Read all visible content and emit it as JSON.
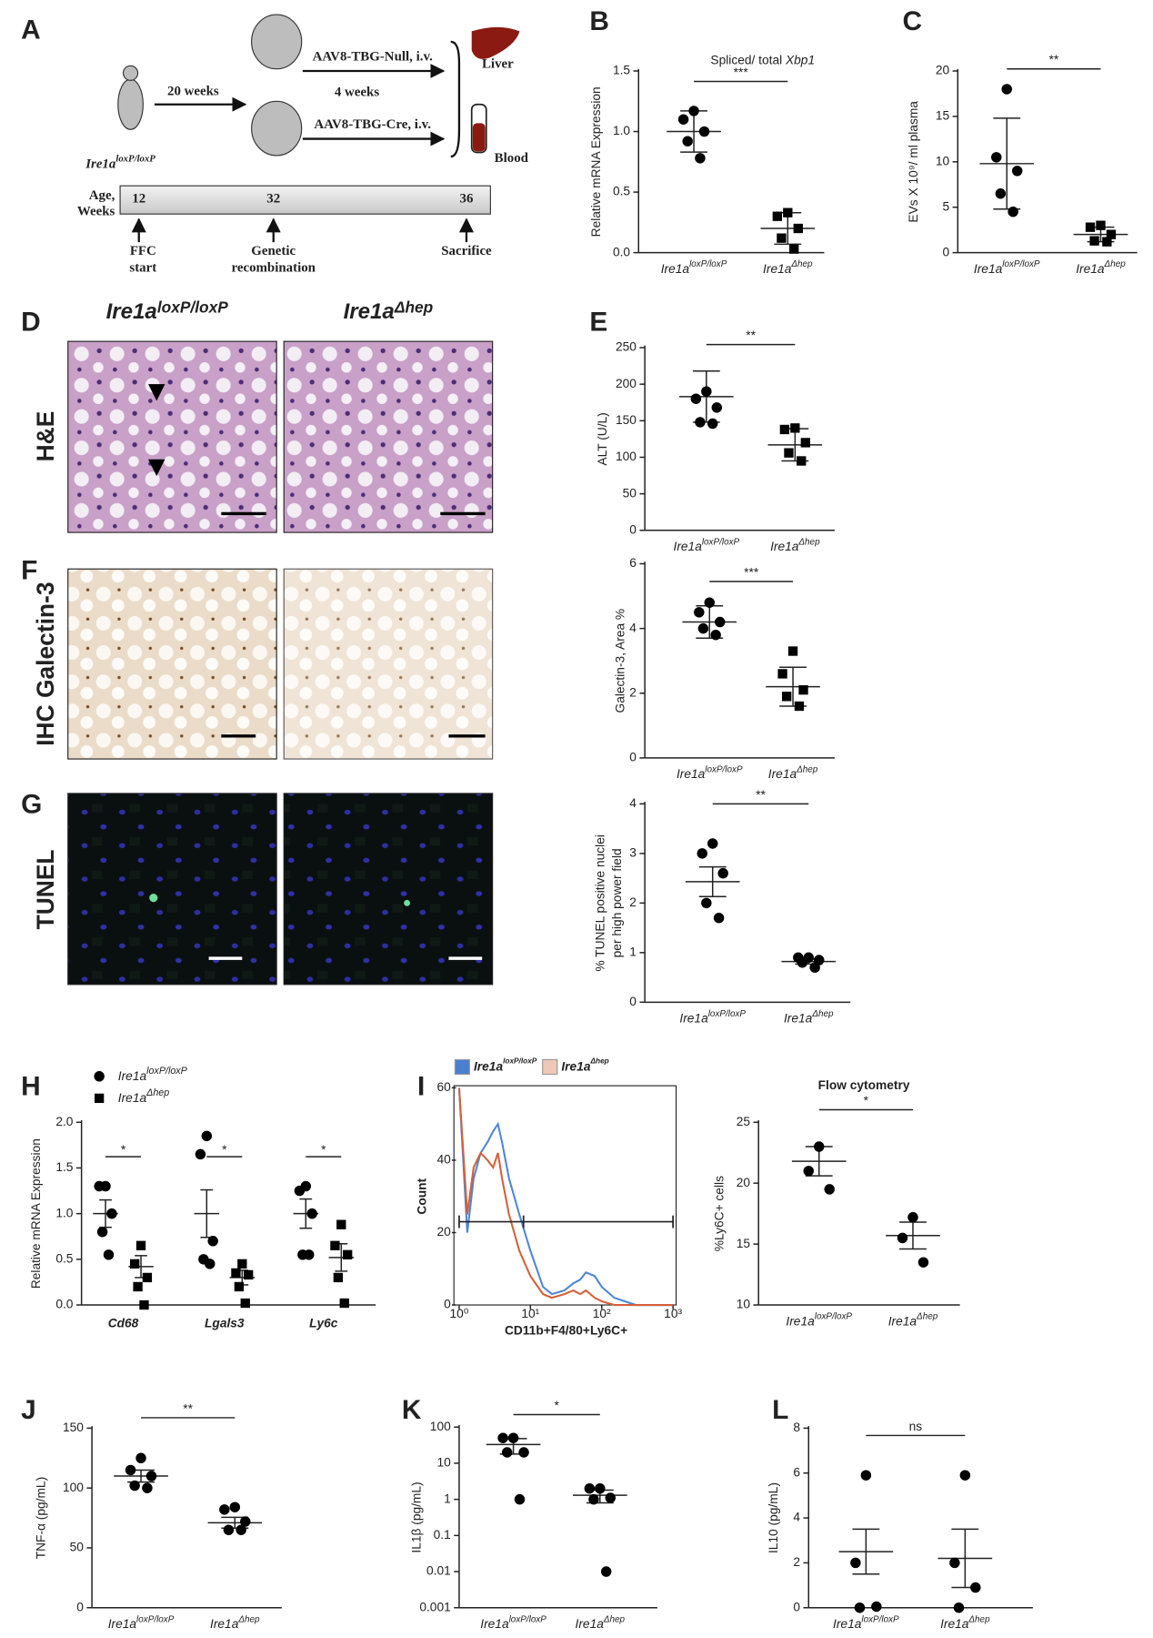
{
  "panel_labels": [
    "A",
    "B",
    "C",
    "D",
    "E",
    "F",
    "G",
    "H",
    "I",
    "J",
    "K",
    "L"
  ],
  "schematic": {
    "interval_1": "20 weeks",
    "treatment_null": "AAV8-TBG-Null, i.v.",
    "interval_2": "4 weeks",
    "treatment_cre": "AAV8-TBG-Cre, i.v.",
    "organ_1": "Liver",
    "organ_2": "Blood",
    "genotype": "Ire1a",
    "genotype_superscript": "loxP/loxP",
    "timeline_label": [
      "Age,",
      "Weeks"
    ],
    "timeline_ticks": [
      12,
      32,
      36
    ],
    "events": [
      [
        "FFC",
        "start"
      ],
      [
        "Genetic",
        "recombination"
      ],
      [
        "Sacrifice"
      ]
    ]
  },
  "histology": {
    "columns": [
      {
        "label": "Ire1a",
        "superscript": "loxP/loxP"
      },
      {
        "label": "Ire1a",
        "superscript": "Δhep"
      }
    ],
    "rows": [
      "H&E",
      "IHC Galectin-3",
      "TUNEL"
    ]
  },
  "chart_data": [
    {
      "type": "dot",
      "title": "Spliced/ total",
      "title_italic": "Xbp1",
      "ylabel": "Relative mRNA Expression",
      "ylim": [
        0,
        1.5
      ],
      "yticks": [
        {
          "value": 0,
          "label": "0.0"
        },
        0.5,
        {
          "value": 1,
          "label": "1.0"
        },
        1.5
      ],
      "significance": "***",
      "groups": [
        {
          "label": "Ire1a",
          "superscript": "loxP/loxP",
          "marker": "circle",
          "points": [
            1.17,
            1.1,
            1.0,
            0.92,
            0.78
          ],
          "mean": 1.0,
          "error": 0.17
        },
        {
          "label": "Ire1a",
          "superscript": "Δhep",
          "marker": "square",
          "points": [
            0.33,
            0.3,
            0.2,
            0.12,
            0.03
          ],
          "mean": 0.2,
          "error": 0.13
        }
      ]
    },
    {
      "type": "dot",
      "ylabel": "EVs X 10⁹/ ml plasma",
      "ylim": [
        0,
        20
      ],
      "yticks": [
        0,
        5,
        10,
        15,
        20
      ],
      "significance": "**",
      "groups": [
        {
          "label": "Ire1a",
          "superscript": "loxP/loxP",
          "marker": "circle",
          "points": [
            18,
            10.5,
            9,
            6.5,
            4.5
          ],
          "mean": 9.8,
          "error": 5
        },
        {
          "label": "Ire1a",
          "superscript": "Δhep",
          "marker": "square",
          "points": [
            3,
            2.8,
            2,
            1.3,
            1.2
          ],
          "mean": 2,
          "error": 0.8
        }
      ]
    },
    {
      "type": "dot",
      "ylabel": "ALT (U/L)",
      "ylim": [
        0,
        250
      ],
      "yticks": [
        0,
        50,
        100,
        150,
        200,
        250
      ],
      "significance": "**",
      "groups": [
        {
          "label": "Ire1a",
          "superscript": "loxP/loxP",
          "marker": "circle",
          "points": [
            190,
            180,
            168,
            148,
            146
          ],
          "mean": 183,
          "error": 35
        },
        {
          "label": "Ire1a",
          "superscript": "Δhep",
          "marker": "square",
          "points": [
            140,
            138,
            120,
            106,
            95
          ],
          "mean": 117,
          "error": 22
        }
      ]
    },
    {
      "type": "dot",
      "ylabel": "Galectin-3, Area %",
      "ylim": [
        0,
        6
      ],
      "yticks": [
        0,
        2,
        4,
        6
      ],
      "significance": "***",
      "groups": [
        {
          "label": "Ire1a",
          "superscript": "loxP/loxP",
          "marker": "circle",
          "points": [
            4.8,
            4.5,
            4.2,
            4.0,
            3.8
          ],
          "mean": 4.2,
          "error": 0.5
        },
        {
          "label": "Ire1a",
          "superscript": "Δhep",
          "marker": "square",
          "points": [
            3.3,
            2.6,
            2.1,
            1.9,
            1.6
          ],
          "mean": 2.2,
          "error": 0.6
        }
      ]
    },
    {
      "type": "dot",
      "ylabel": [
        "% TUNEL positive nuclei",
        "per high power field"
      ],
      "ylim": [
        0,
        4
      ],
      "yticks": [
        0,
        1,
        2,
        3,
        4
      ],
      "significance": "**",
      "groups": [
        {
          "label": "Ire1a",
          "superscript": "loxP/loxP",
          "marker": "circle",
          "points": [
            3.2,
            3.0,
            2.6,
            2.0,
            1.7
          ],
          "mean": 2.43,
          "error": 0.3
        },
        {
          "label": "Ire1a",
          "superscript": "Δhep",
          "marker": "circle",
          "points": [
            0.9,
            0.9,
            0.85,
            0.8,
            0.7
          ],
          "mean": 0.82,
          "error": 0.05
        }
      ]
    },
    {
      "type": "grouped_dot",
      "ylabel": "Relative mRNA Expression",
      "ylim": [
        0,
        2
      ],
      "yticks": [
        {
          "value": 0,
          "label": "0.0"
        },
        0.5,
        {
          "value": 1,
          "label": "1.0"
        },
        1.5,
        {
          "value": 2,
          "label": "2.0"
        }
      ],
      "categories": [
        "Cd68",
        "Lgals3",
        "Ly6c"
      ],
      "significance": [
        "*",
        "*",
        "*"
      ],
      "series": [
        {
          "name": "Ire1a",
          "name_superscript": "loxP/loxP",
          "marker": "circle",
          "points": [
            [
              1.3,
              1.3,
              1.0,
              0.8,
              0.55
            ],
            [
              1.85,
              1.65,
              0.7,
              0.5,
              0.45
            ],
            [
              1.3,
              1.25,
              1.0,
              0.55,
              0.55
            ]
          ],
          "means": [
            1.0,
            1.0,
            1.0
          ],
          "errors": [
            0.15,
            0.26,
            0.16
          ]
        },
        {
          "name": "Ire1a",
          "name_superscript": "Δhep",
          "marker": "square",
          "points": [
            [
              0.65,
              0.45,
              0.3,
              0.2,
              0.0
            ],
            [
              0.45,
              0.35,
              0.33,
              0.2,
              0.02
            ],
            [
              0.88,
              0.65,
              0.55,
              0.3,
              0.02
            ]
          ],
          "means": [
            0.42,
            0.3,
            0.52
          ],
          "errors": [
            0.12,
            0.08,
            0.15
          ]
        }
      ]
    },
    {
      "type": "line",
      "ylabel": "Count",
      "xlabel": "CD11b+F4/80+Ly6C+",
      "xlog": true,
      "xlim": [
        1,
        1000
      ],
      "xticks": [
        {
          "value": 1,
          "label": "10⁰"
        },
        {
          "value": 10,
          "label": "10¹"
        },
        {
          "value": 100,
          "label": "10²"
        },
        {
          "value": 1000,
          "label": "10³"
        }
      ],
      "ylim": [
        0,
        60
      ],
      "yticks": [
        0,
        20,
        40,
        60
      ],
      "x": [
        1,
        1.3,
        1.6,
        2,
        2.5,
        3,
        3.5,
        4,
        5,
        7,
        10,
        15,
        20,
        30,
        40,
        50,
        60,
        80,
        100,
        150,
        300,
        1000
      ],
      "gate": {
        "y": 23,
        "x": [
          1,
          8,
          1000
        ]
      },
      "series": [
        {
          "name": "Ire1a",
          "name_superscript": "loxP/loxP",
          "color": "#4f86d6",
          "legend_color": "#4a7fd0",
          "values": [
            60,
            20,
            35,
            42,
            45,
            48,
            50,
            45,
            35,
            25,
            15,
            5,
            3,
            4,
            6,
            7,
            9,
            8,
            5,
            2,
            0,
            0
          ]
        },
        {
          "name": "Ire1a",
          "name_superscript": "Δhep",
          "color": "#d4603a",
          "legend_color": "#f0c8b8",
          "values": [
            60,
            25,
            38,
            42,
            40,
            38,
            42,
            35,
            25,
            15,
            8,
            3,
            2,
            3,
            4,
            3,
            4,
            2,
            1,
            0,
            0,
            0
          ]
        }
      ]
    },
    {
      "type": "dot",
      "title": "Flow cytometry",
      "ylabel": "%Ly6C+ cells",
      "ylim": [
        10,
        25
      ],
      "yticks": [
        10,
        15,
        20,
        25
      ],
      "significance": "*",
      "groups": [
        {
          "label": "Ire1a",
          "superscript": "loxP/loxP",
          "marker": "circle",
          "points": [
            23,
            21,
            19.5
          ],
          "mean": 21.8,
          "error": 1.2
        },
        {
          "label": "Ire1a",
          "superscript": "Δhep",
          "marker": "circle",
          "points": [
            17.2,
            15.5,
            13.5
          ],
          "mean": 15.7,
          "error": 1.1
        }
      ]
    },
    {
      "type": "dot",
      "ylabel": "TNF-α (pg/mL)",
      "ylim": [
        0,
        150
      ],
      "yticks": [
        0,
        50,
        100,
        150
      ],
      "significance": "**",
      "groups": [
        {
          "label": "Ire1a",
          "superscript": "loxP/loxP",
          "marker": "circle",
          "points": [
            125,
            115,
            110,
            102,
            100
          ],
          "mean": 110,
          "error": 5
        },
        {
          "label": "Ire1a",
          "superscript": "Δhep",
          "marker": "circle",
          "points": [
            84,
            82,
            72,
            65,
            65
          ],
          "mean": 71,
          "error": 4.5
        }
      ]
    },
    {
      "type": "dot",
      "ylabel": "IL1β (pg/mL)",
      "log": true,
      "ylim": [
        0.001,
        100
      ],
      "yticks": [
        0.001,
        0.01,
        0.1,
        1,
        10,
        100
      ],
      "significance": "*",
      "groups": [
        {
          "label": "Ire1a",
          "superscript": "loxP/loxP",
          "marker": "circle",
          "points": [
            50,
            50,
            20,
            20,
            1
          ],
          "mean": 33,
          "error": 15
        },
        {
          "label": "Ire1a",
          "superscript": "Δhep",
          "marker": "circle",
          "points": [
            2,
            2,
            1.1,
            1,
            0.01
          ],
          "mean": 1.3,
          "error": 0.5
        }
      ]
    },
    {
      "type": "dot",
      "ylabel": "IL10 (pg/mL)",
      "ylim": [
        0,
        8
      ],
      "yticks": [
        0,
        2,
        4,
        6,
        8
      ],
      "significance": "ns",
      "groups": [
        {
          "label": "Ire1a",
          "superscript": "loxP/loxP",
          "marker": "circle",
          "points": [
            5.9,
            2.0,
            0.05,
            0
          ],
          "mean": 2.5,
          "error": 1.0
        },
        {
          "label": "Ire1a",
          "superscript": "Δhep",
          "marker": "circle",
          "points": [
            5.9,
            2.0,
            0.9,
            0
          ],
          "mean": 2.2,
          "error": 1.3
        }
      ]
    }
  ]
}
